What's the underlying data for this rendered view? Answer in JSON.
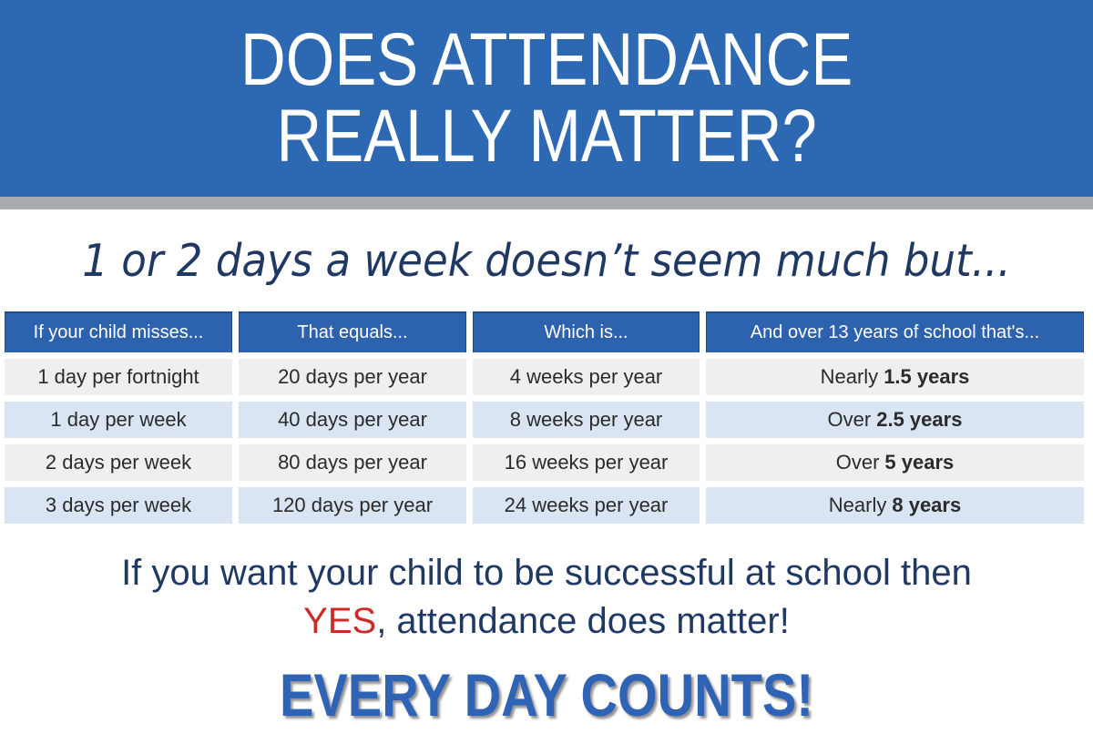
{
  "header": {
    "title_line1": "DOES ATTENDANCE",
    "title_line2": "REALLY MATTER?"
  },
  "subtitle": "1 or 2 days a week doesn’t seem much but...",
  "table": {
    "columns": [
      "If your child misses...",
      "That equals...",
      "Which is...",
      "And over 13 years of school that's..."
    ],
    "rows": [
      {
        "misses": "1 day per fortnight",
        "equals": "20 days per year",
        "which_is": "4 weeks per year",
        "over_prefix": "Nearly",
        "over_bold": "1.5 years"
      },
      {
        "misses": "1 day per week",
        "equals": "40 days per year",
        "which_is": "8 weeks per year",
        "over_prefix": "Over",
        "over_bold": "2.5 years"
      },
      {
        "misses": "2 days per week",
        "equals": "80 days per year",
        "which_is": "16 weeks per year",
        "over_prefix": "Over",
        "over_bold": "5 years"
      },
      {
        "misses": "3 days per week",
        "equals": "120 days per year",
        "which_is": "24 weeks per year",
        "over_prefix": "Nearly",
        "over_bold": "8 years"
      }
    ]
  },
  "closing": {
    "line1": "If you want your child to be successful at school then",
    "yes": "YES",
    "line2_rest": ", attendance does matter!"
  },
  "footer": {
    "slogan": "EVERY DAY COUNTS!"
  },
  "colors": {
    "header-blue": "#2d68b2",
    "table-header-blue": "#2d62ae",
    "gray-bar": "#a8abad",
    "navy": "#1f3864",
    "red": "#cc2a27",
    "row-gray": "#eeeff0",
    "row-blue": "#d9e5f2",
    "edc-blue": "#2e63b5"
  }
}
